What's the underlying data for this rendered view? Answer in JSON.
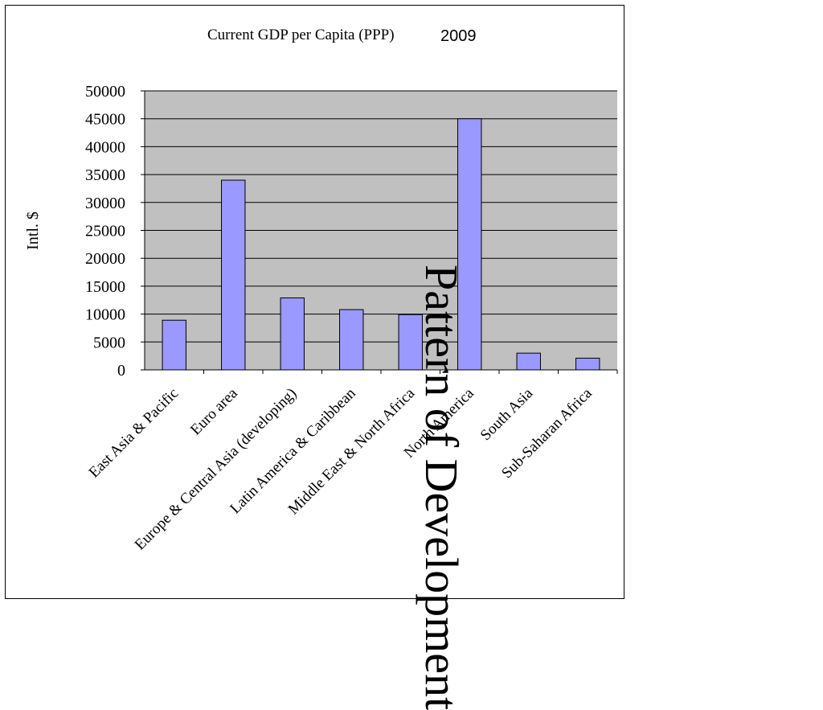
{
  "slide": {
    "side_title": "Pattern of Development",
    "year_label": "2009"
  },
  "chart_data": {
    "type": "bar",
    "title": "Current GDP per Capita (PPP)",
    "xlabel": "",
    "ylabel": "Intl. $",
    "categories": [
      "East Asia & Pacific",
      "Euro area",
      "Europe & Central Asia (developing)",
      "Latin America & Caribbean",
      "Middle East & North Africa",
      "North America",
      "South Asia",
      "Sub-Saharan Africa"
    ],
    "values": [
      8900,
      34000,
      12900,
      10800,
      9900,
      45000,
      3000,
      2100
    ],
    "ylim": [
      0,
      50000
    ],
    "yticks": [
      0,
      5000,
      10000,
      15000,
      20000,
      25000,
      30000,
      35000,
      40000,
      45000,
      50000
    ],
    "grid": true,
    "legend": "none",
    "colors": {
      "bar": "#9999ff",
      "plot_background": "#c0c0c0",
      "gridline": "#000000"
    }
  }
}
